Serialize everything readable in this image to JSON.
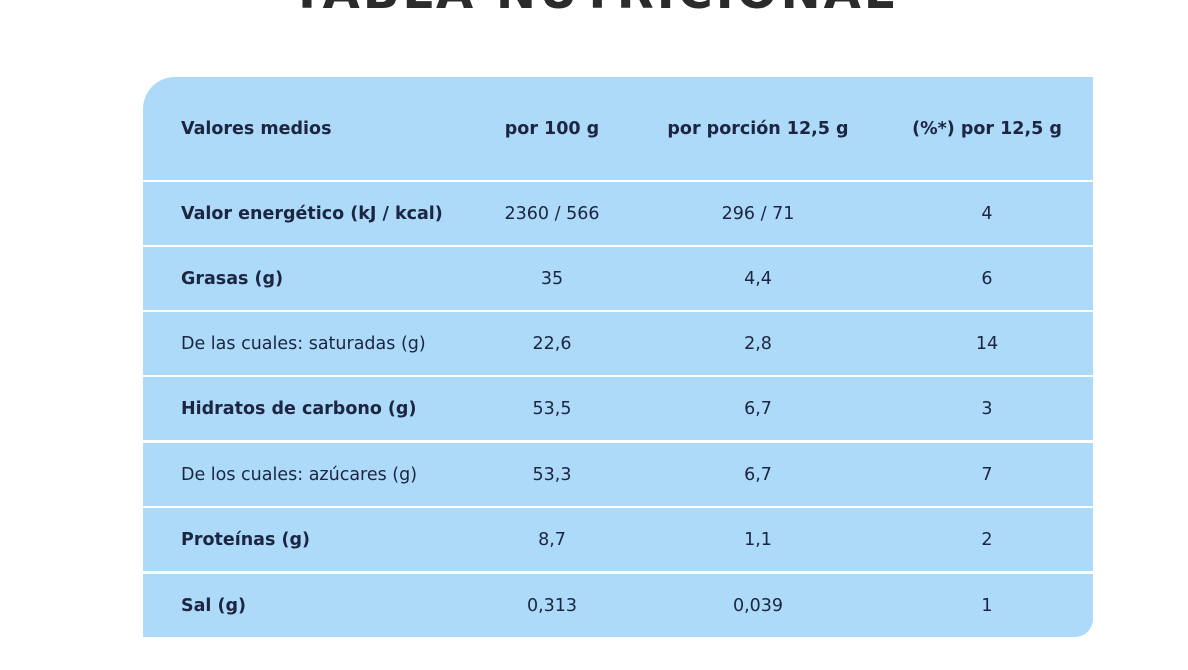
{
  "title": "TABLA NUTRICIONAL",
  "table": {
    "header": [
      "Valores medios",
      "por 100 g",
      "por porción 12,5 g",
      "(%*) por 12,5 g"
    ],
    "rows": [
      {
        "cells": [
          "Valor energético (kJ / kcal)",
          "2360 / 566",
          "296 / 71",
          "4"
        ],
        "bold_label": true
      },
      {
        "cells": [
          "Grasas (g)",
          "35",
          "4,4",
          "6"
        ],
        "bold_label": true
      },
      {
        "cells": [
          "De las cuales: saturadas (g)",
          "22,6",
          "2,8",
          "14"
        ],
        "bold_label": false
      },
      {
        "cells": [
          "Hidratos de carbono (g)",
          "53,5",
          "6,7",
          "3"
        ],
        "bold_label": true
      },
      {
        "cells": [
          "De los cuales: azúcares (g)",
          "53,3",
          "6,7",
          "7"
        ],
        "bold_label": false
      },
      {
        "cells": [
          "Proteínas (g)",
          "8,7",
          "1,1",
          "2"
        ],
        "bold_label": true
      },
      {
        "cells": [
          "Sal (g)",
          "0,313",
          "0,039",
          "1"
        ],
        "bold_label": true
      }
    ]
  },
  "colors": {
    "row_background": "#acdaf8",
    "separator": "#ffffff",
    "text": "#1c2541"
  }
}
